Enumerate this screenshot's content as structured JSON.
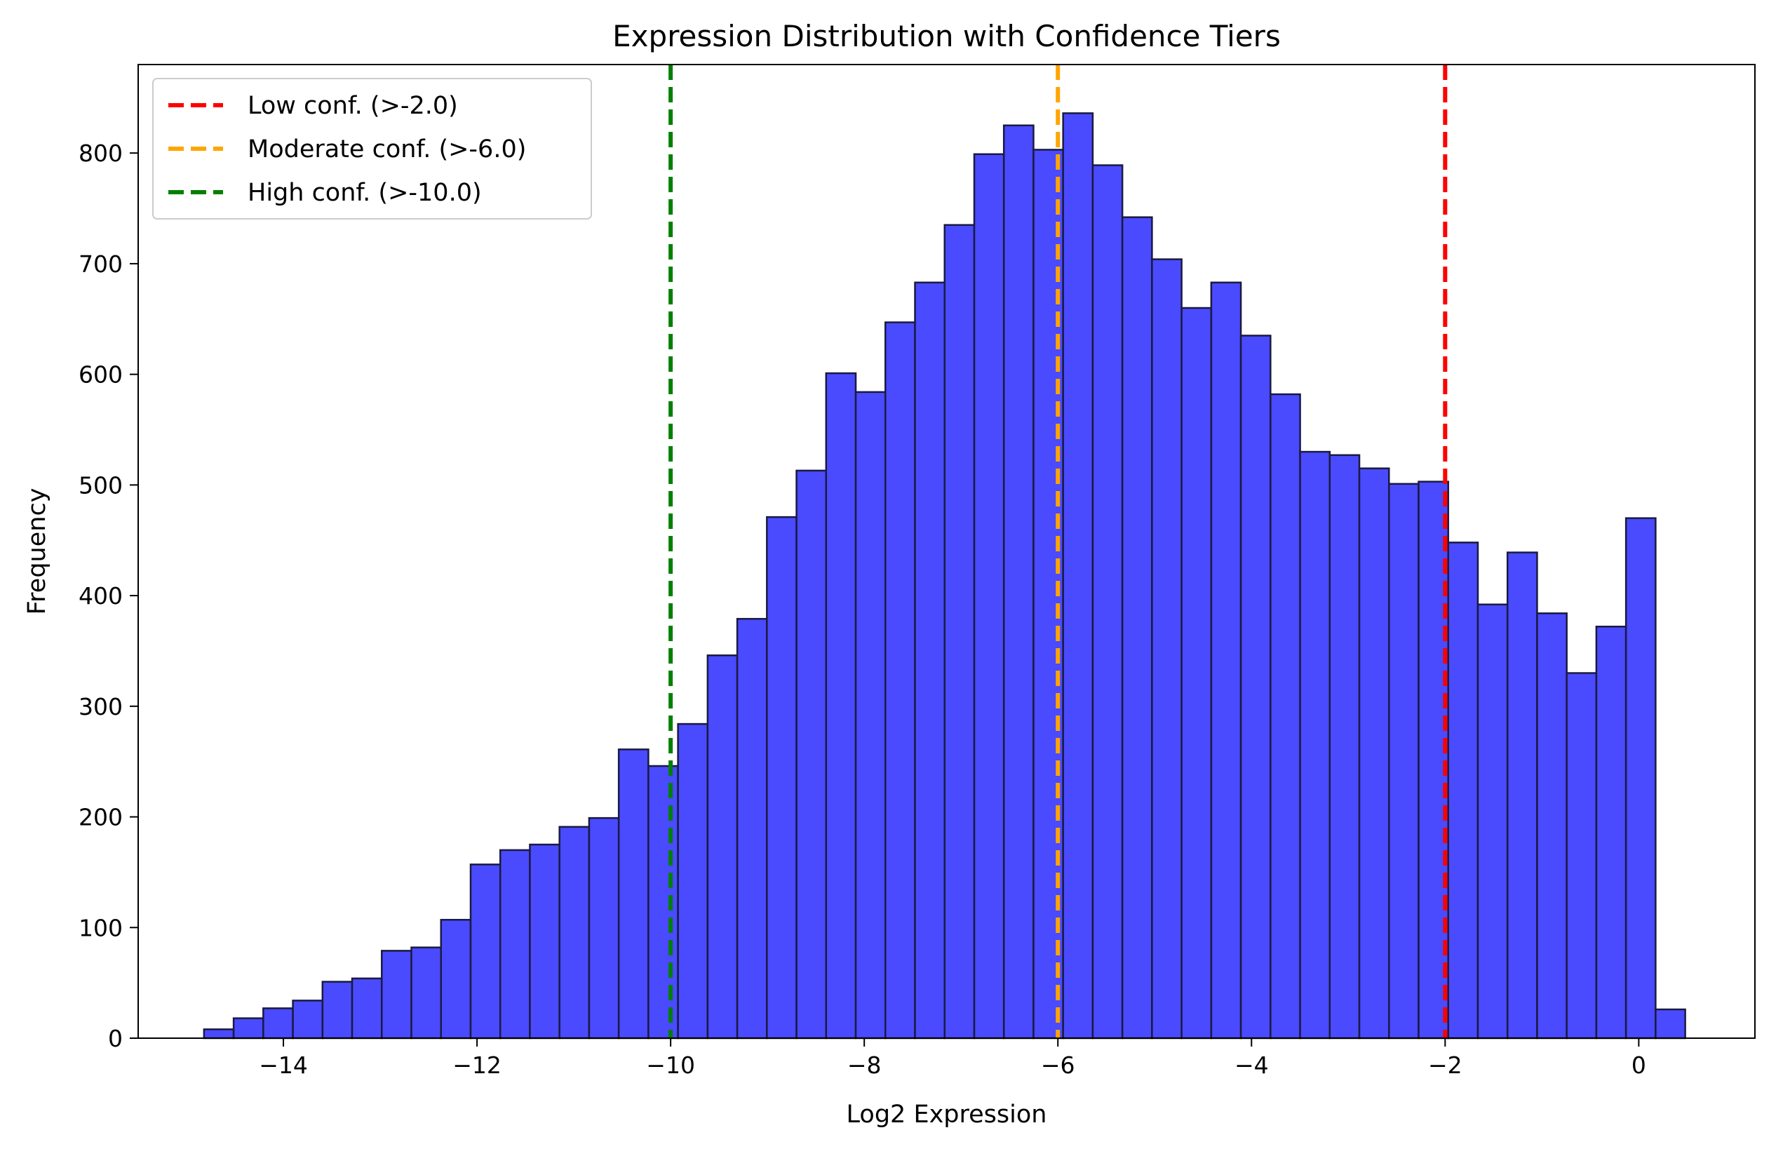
{
  "chart_data": {
    "type": "bar",
    "title": "Expression Distribution with Confidence Tiers",
    "xlabel": "Log2 Expression",
    "ylabel": "Frequency",
    "xlim": [
      -15.5,
      1.2
    ],
    "ylim": [
      0,
      880
    ],
    "x_ticks": [
      -14,
      -12,
      -10,
      -8,
      -6,
      -4,
      -2,
      0
    ],
    "x_tick_labels": [
      "−14",
      "−12",
      "−10",
      "−8",
      "−6",
      "−4",
      "−2",
      "0"
    ],
    "y_ticks": [
      0,
      100,
      200,
      300,
      400,
      500,
      600,
      700,
      800
    ],
    "y_tick_labels": [
      "0",
      "100",
      "200",
      "300",
      "400",
      "500",
      "600",
      "700",
      "800"
    ],
    "bin_start": -14.82,
    "bin_width": 0.306,
    "values": [
      8,
      18,
      27,
      34,
      51,
      54,
      79,
      82,
      107,
      157,
      170,
      175,
      191,
      199,
      261,
      246,
      284,
      346,
      379,
      471,
      513,
      601,
      584,
      647,
      683,
      735,
      799,
      825,
      803,
      836,
      789,
      742,
      704,
      660,
      683,
      635,
      582,
      530,
      527,
      515,
      501,
      503,
      448,
      392,
      439,
      384,
      330,
      372,
      470,
      26
    ],
    "bar_color": "#4a4aff",
    "bar_edge_color": "#1a1a40",
    "grid": false,
    "legend_position": "upper-left",
    "thresholds": [
      {
        "name": "Low conf. (>-2.0)",
        "x": -2.0,
        "color": "#ff0000"
      },
      {
        "name": "Moderate conf. (>-6.0)",
        "x": -6.0,
        "color": "#ffa500"
      },
      {
        "name": "High conf. (>-10.0)",
        "x": -10.0,
        "color": "#008000"
      }
    ]
  }
}
